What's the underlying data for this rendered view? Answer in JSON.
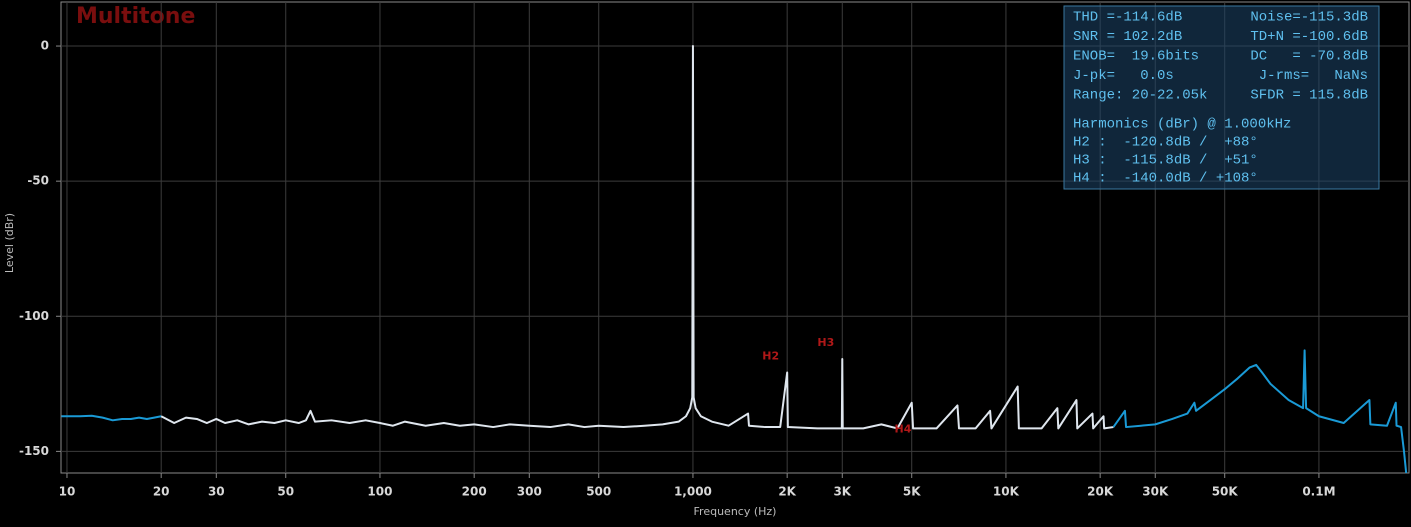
{
  "chart_data": {
    "type": "line",
    "title": "Multitone",
    "x_label": "Frequency (Hz)",
    "y_label": "Level (dBr)",
    "x_log": true,
    "grid": true,
    "xlim": [
      9.57,
      194000
    ],
    "ylim": [
      -158,
      16.3
    ],
    "xticks": [
      10,
      20,
      30,
      50,
      100,
      200,
      300,
      500,
      {
        "value": 1000,
        "label": "1,000"
      },
      {
        "value": 2000,
        "label": "2K"
      },
      {
        "value": 3000,
        "label": "3K"
      },
      {
        "value": 5000,
        "label": "5K"
      },
      {
        "value": 10000,
        "label": "10K"
      },
      {
        "value": 20000,
        "label": "20K"
      },
      {
        "value": 30000,
        "label": "30K"
      },
      {
        "value": 50000,
        "label": "50K"
      },
      {
        "value": 100000,
        "label": "0.1M"
      }
    ],
    "yticks": [
      0,
      -50,
      -100,
      -150
    ],
    "series": [
      {
        "color": "#1a9ad6",
        "x": [
          9.6,
          10,
          11,
          12,
          13,
          14,
          15,
          16,
          17,
          18,
          19,
          20
        ],
        "values": [
          -137,
          -137,
          -137,
          -136.8,
          -137.5,
          -138.5,
          -138,
          -138,
          -137.5,
          -138,
          -137.5,
          -137
        ]
      },
      {
        "color": "#dfe6ee",
        "x": [
          20,
          22,
          24,
          26,
          28,
          30,
          32,
          35,
          38,
          42,
          46,
          50,
          55,
          58,
          60,
          62,
          70,
          80,
          90,
          100,
          110,
          120,
          140,
          160,
          180,
          200,
          230,
          260,
          300,
          350,
          400,
          450,
          500,
          600,
          700,
          800,
          900,
          950,
          980,
          995,
          1000,
          1005,
          1020,
          1060,
          1150,
          1300,
          1500,
          1510,
          1700,
          1900,
          2000,
          2010,
          2500,
          2990,
          3000,
          3010,
          3500,
          4000,
          4500,
          5000,
          5050,
          6000,
          7000,
          7080,
          8000,
          8900,
          8990,
          10900,
          11000,
          13000,
          14600,
          14700,
          16800,
          16900,
          18900,
          19000,
          20500,
          20600,
          22050
        ],
        "values": [
          -137,
          -139.5,
          -137.5,
          -138,
          -139.5,
          -138,
          -139.5,
          -138.5,
          -140,
          -139,
          -139.5,
          -138.5,
          -139.5,
          -138.5,
          -135,
          -139,
          -138.5,
          -139.5,
          -138.5,
          -139.5,
          -140.5,
          -139,
          -140.5,
          -139.5,
          -140.5,
          -140,
          -141,
          -140,
          -140.5,
          -141,
          -140,
          -141,
          -140.5,
          -141,
          -140.5,
          -140,
          -139,
          -137,
          -134,
          -130,
          0,
          -130,
          -134,
          -137,
          -139,
          -140.5,
          -136,
          -140.5,
          -141,
          -141,
          -120.8,
          -141,
          -141.5,
          -141.5,
          -115.8,
          -141.5,
          -141.5,
          -140,
          -141.5,
          -132,
          -141.5,
          -141.5,
          -133,
          -141.5,
          -141.5,
          -135,
          -141.5,
          -126,
          -141.5,
          -141.5,
          -134,
          -141.5,
          -131,
          -141.5,
          -136,
          -141.5,
          -137,
          -141.5,
          -141
        ]
      },
      {
        "color": "#1a9ad6",
        "x": [
          22050,
          24000,
          24200,
          27000,
          30000,
          34000,
          38000,
          40000,
          40500,
          45000,
          50000,
          55000,
          60000,
          63000,
          66000,
          70000,
          80000,
          89000,
          90000,
          91000,
          100000,
          120000,
          145000,
          146000,
          165000,
          176000,
          177000,
          183000,
          187000,
          190000
        ],
        "values": [
          -141,
          -135,
          -141,
          -140.5,
          -140,
          -138,
          -136,
          -132,
          -135,
          -131,
          -127,
          -123,
          -119,
          -118,
          -121,
          -125,
          -131,
          -134,
          -112.6,
          -134,
          -137,
          -139.5,
          -131,
          -140,
          -140.5,
          -132,
          -140.5,
          -141,
          -150,
          -158
        ]
      }
    ],
    "harmonic_labels": [
      {
        "text": "H2",
        "x": 2000,
        "y": -120.8
      },
      {
        "text": "H3",
        "x": 3000,
        "y": -115.8
      },
      {
        "text": "H4",
        "x": 4000,
        "y": -140
      }
    ],
    "stats": [
      [
        "THD =-114.6dB",
        "Noise=-115.3dB"
      ],
      [
        "SNR = 102.2dB",
        "TD+N =-100.6dB"
      ],
      [
        "ENOB=  19.6bits",
        "DC   = -70.8dB"
      ],
      [
        "J-pk=   0.0s",
        "J-rms=   NaNs"
      ],
      [
        "Range: 20-22.05k",
        "SFDR = 115.8dB"
      ]
    ],
    "harmonics_header": "Harmonics (dBr) @ 1.000kHz",
    "harmonics": [
      "H2 :  -120.8dB /  +88°",
      "H3 :  -115.8dB /  +51°",
      "H4 :  -140.0dB / +108°"
    ]
  }
}
